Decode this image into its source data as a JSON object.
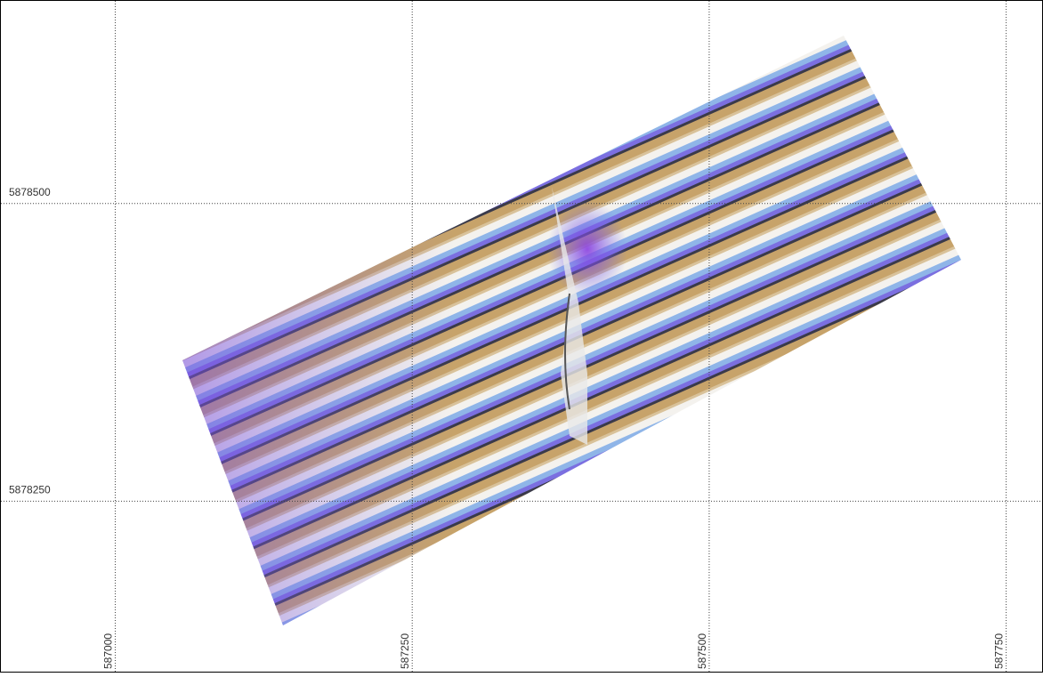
{
  "map": {
    "xlim": [
      586903,
      587781
    ],
    "ylim": [
      5878106,
      5878671
    ],
    "xticks": [
      587000,
      587250,
      587500,
      587750
    ],
    "yticks": [
      5878250,
      5878500
    ]
  }
}
